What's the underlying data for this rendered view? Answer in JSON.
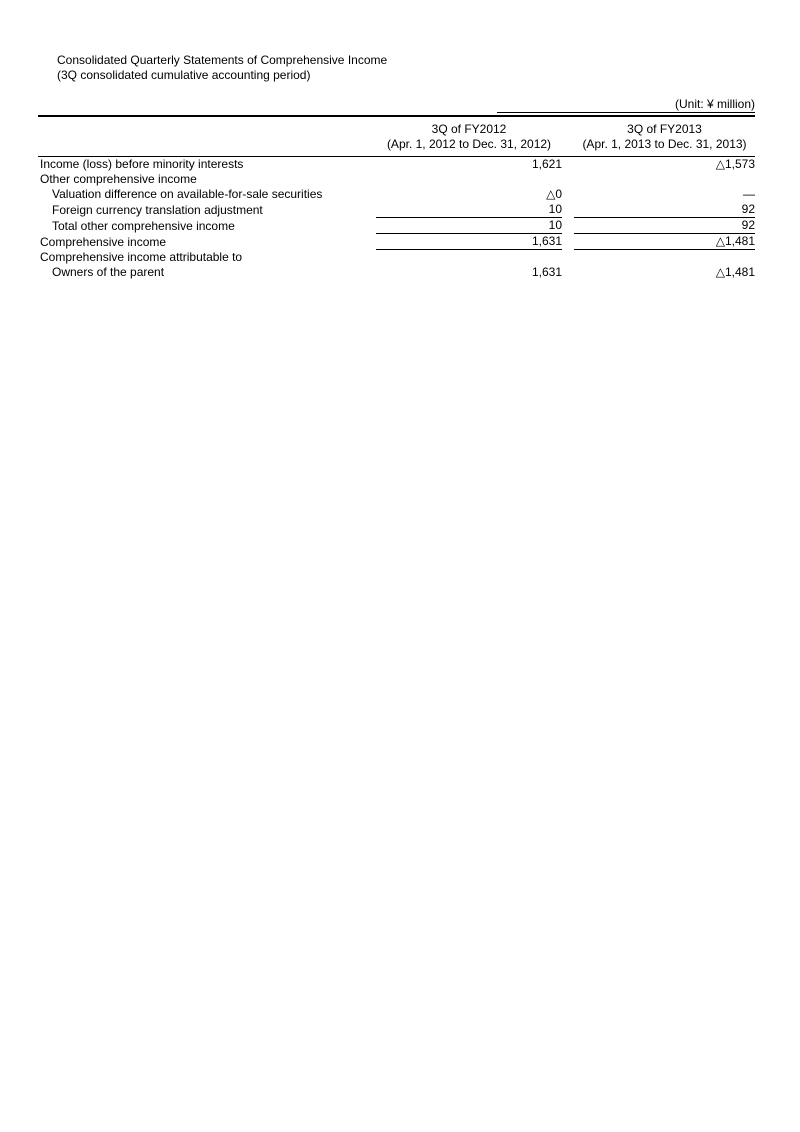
{
  "document": {
    "title": "Consolidated Quarterly Statements of Comprehensive Income",
    "subtitle": "(3Q consolidated cumulative accounting period)",
    "unit_note": "(Unit: ¥ million)"
  },
  "table": {
    "column_headers": [
      {
        "period": "3Q of FY2012",
        "range": "(Apr. 1, 2012 to Dec. 31, 2012)"
      },
      {
        "period": "3Q of FY2013",
        "range": "(Apr. 1, 2013 to Dec. 31, 2013)"
      }
    ],
    "rows": [
      {
        "label": "Income (loss) before minority interests",
        "indent": 0,
        "fy2012": "1,621",
        "fy2013": "△1,573",
        "underline": false
      },
      {
        "label": "Other comprehensive income",
        "indent": 0,
        "fy2012": "",
        "fy2013": "",
        "underline": false
      },
      {
        "label": "Valuation difference on available-for-sale securities",
        "indent": 1,
        "fy2012": "△0",
        "fy2013": "—",
        "underline": false
      },
      {
        "label": "Foreign currency translation adjustment",
        "indent": 1,
        "fy2012": "10",
        "fy2013": "92",
        "underline": true
      },
      {
        "label": "Total other comprehensive income",
        "indent": 1,
        "fy2012": "10",
        "fy2013": "92",
        "underline": true
      },
      {
        "label": "Comprehensive income",
        "indent": 0,
        "fy2012": "1,631",
        "fy2013": "△1,481",
        "underline": true
      },
      {
        "label": "Comprehensive income attributable to",
        "indent": 0,
        "fy2012": "",
        "fy2013": "",
        "underline": false
      },
      {
        "label": "Owners of the parent",
        "indent": 1,
        "fy2012": "1,631",
        "fy2013": "△1,481",
        "underline": false
      }
    ]
  },
  "colors": {
    "text": "#000000",
    "rule": "#000000",
    "background": "#ffffff"
  }
}
